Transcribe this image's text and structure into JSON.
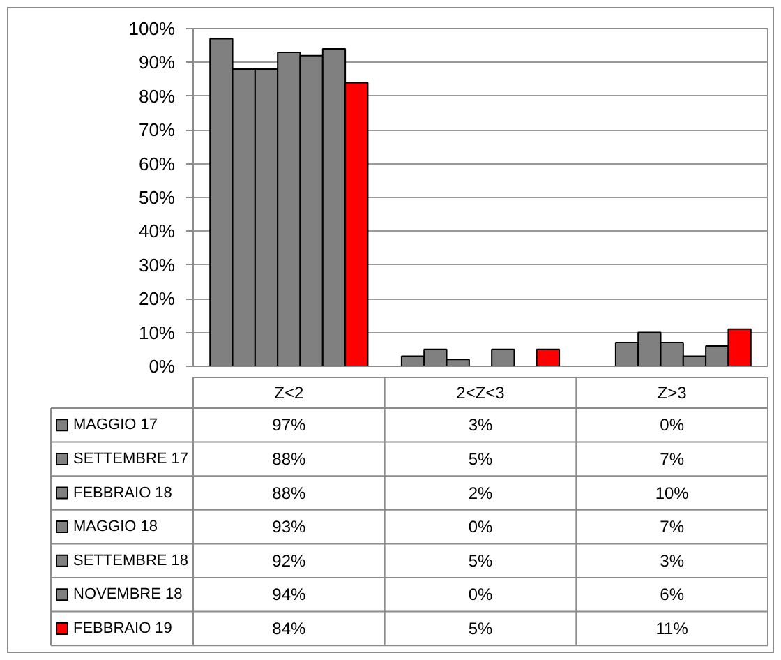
{
  "chart_data": {
    "type": "bar",
    "categories": [
      "Z<2",
      "2<Z<3",
      "Z>3"
    ],
    "series": [
      {
        "name": "MAGGIO 17",
        "color": "#808080",
        "values": [
          97,
          3,
          0
        ],
        "value_labels": [
          "97%",
          "3%",
          "0%"
        ]
      },
      {
        "name": "SETTEMBRE 17",
        "color": "#808080",
        "values": [
          88,
          5,
          7
        ],
        "value_labels": [
          "88%",
          "5%",
          "7%"
        ]
      },
      {
        "name": "FEBBRAIO 18",
        "color": "#808080",
        "values": [
          88,
          2,
          10
        ],
        "value_labels": [
          "88%",
          "2%",
          "10%"
        ]
      },
      {
        "name": "MAGGIO 18",
        "color": "#808080",
        "values": [
          93,
          0,
          7
        ],
        "value_labels": [
          "93%",
          "0%",
          "7%"
        ]
      },
      {
        "name": "SETTEMBRE 18",
        "color": "#808080",
        "values": [
          92,
          5,
          3
        ],
        "value_labels": [
          "92%",
          "5%",
          "3%"
        ]
      },
      {
        "name": "NOVEMBRE 18",
        "color": "#808080",
        "values": [
          94,
          0,
          6
        ],
        "value_labels": [
          "94%",
          "0%",
          "6%"
        ]
      },
      {
        "name": "FEBBRAIO 19",
        "color": "#ff0000",
        "values": [
          84,
          5,
          11
        ],
        "value_labels": [
          "84%",
          "5%",
          "11%"
        ]
      }
    ],
    "ylim": [
      0,
      100
    ],
    "yticks": [
      {
        "value": 0,
        "label": "0%"
      },
      {
        "value": 10,
        "label": "10%"
      },
      {
        "value": 20,
        "label": "20%"
      },
      {
        "value": 30,
        "label": "30%"
      },
      {
        "value": 40,
        "label": "40%"
      },
      {
        "value": 50,
        "label": "50%"
      },
      {
        "value": 60,
        "label": "60%"
      },
      {
        "value": 70,
        "label": "70%"
      },
      {
        "value": 80,
        "label": "80%"
      },
      {
        "value": 90,
        "label": "90%"
      },
      {
        "value": 100,
        "label": "100%"
      }
    ],
    "grid": "y",
    "legend": "bottom left"
  }
}
